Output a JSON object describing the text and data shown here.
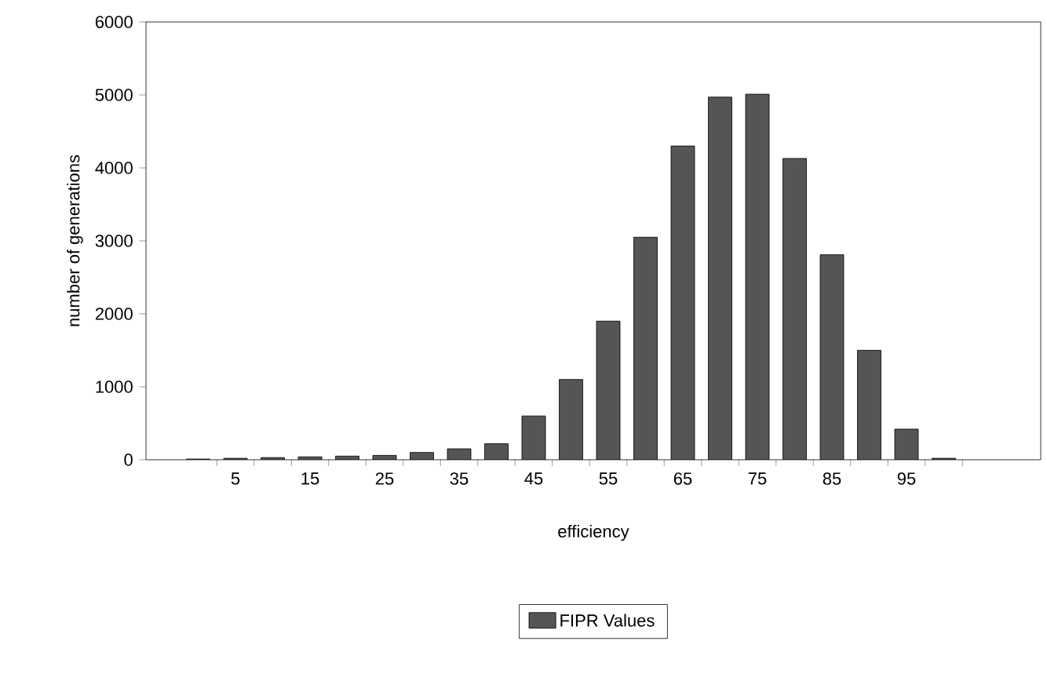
{
  "chart_data": {
    "type": "bar",
    "xlabel": "efficiency",
    "ylabel": "number of generations",
    "categories": [
      null,
      "5",
      null,
      "15",
      null,
      "25",
      null,
      "35",
      null,
      "45",
      null,
      "55",
      null,
      "65",
      null,
      "75",
      null,
      "85",
      null,
      "95",
      null
    ],
    "series": [
      {
        "name": "FIPR Values",
        "color": "#555555",
        "values": [
          10,
          20,
          30,
          40,
          50,
          60,
          100,
          150,
          220,
          600,
          1100,
          1900,
          3050,
          4300,
          4970,
          5010,
          4130,
          2810,
          1500,
          420,
          20
        ]
      }
    ],
    "ylim": [
      0,
      6000
    ],
    "yticks": [
      0,
      1000,
      2000,
      3000,
      4000,
      5000,
      6000
    ],
    "grid": false,
    "legend": "bottom"
  }
}
